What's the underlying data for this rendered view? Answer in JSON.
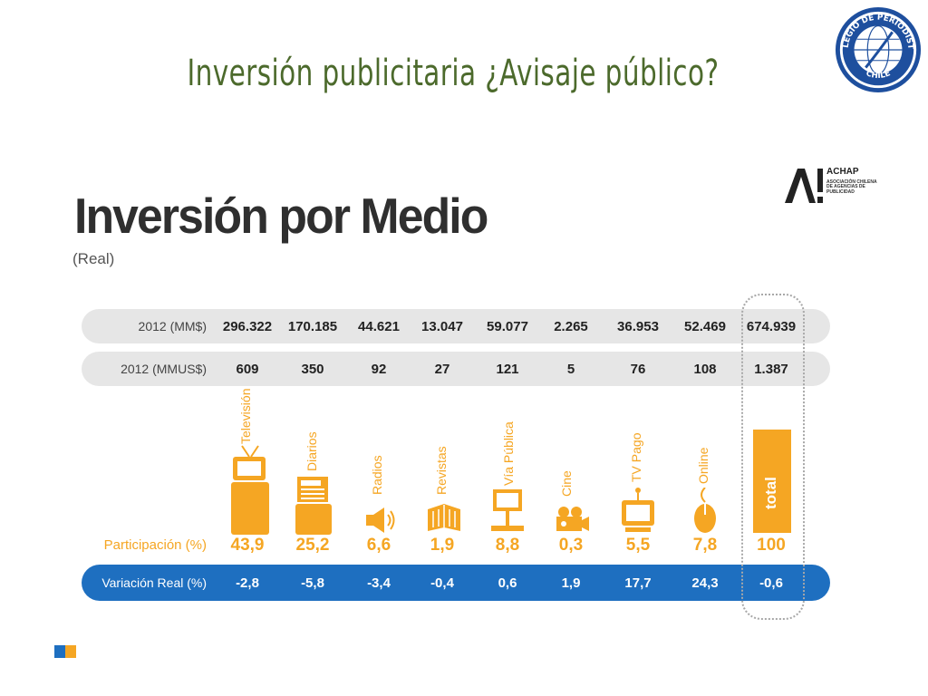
{
  "slide": {
    "title": "Inversión publicitaria ¿Avisaje público?",
    "seal_text_top": "COLEGIO DE PERIODISTAS",
    "seal_text_bottom": "CHILE"
  },
  "achap": {
    "name": "ACHAP",
    "subtitle": "ASOCIACIÓN CHILENA DE AGENCIAS DE PUBLICIDAD"
  },
  "chart_data": {
    "type": "table",
    "title": "Inversión por Medio",
    "subtitle": "(Real)",
    "categories": [
      "Televisión",
      "Diarios",
      "Radios",
      "Revistas",
      "Vía Pública",
      "Cine",
      "TV Pago",
      "Online",
      "total"
    ],
    "rows": [
      {
        "label": "2012 (MM$)",
        "values": [
          "296.322",
          "170.185",
          "44.621",
          "13.047",
          "59.077",
          "2.265",
          "36.953",
          "52.469",
          "674.939"
        ]
      },
      {
        "label": "2012 (MMUS$)",
        "values": [
          "609",
          "350",
          "92",
          "27",
          "121",
          "5",
          "76",
          "108",
          "1.387"
        ]
      },
      {
        "label": "Participación (%)",
        "values": [
          "43,9",
          "25,2",
          "6,6",
          "1,9",
          "8,8",
          "0,3",
          "5,5",
          "7,8",
          "100"
        ]
      },
      {
        "label": "Variación Real (%)",
        "values": [
          "-2,8",
          "-5,8",
          "-3,4",
          "-0,4",
          "0,6",
          "1,9",
          "17,7",
          "24,3",
          "-0,6"
        ]
      }
    ],
    "colors": {
      "accent": "#f5a623",
      "blue": "#1e6fc0",
      "grey": "#e6e6e6"
    }
  }
}
